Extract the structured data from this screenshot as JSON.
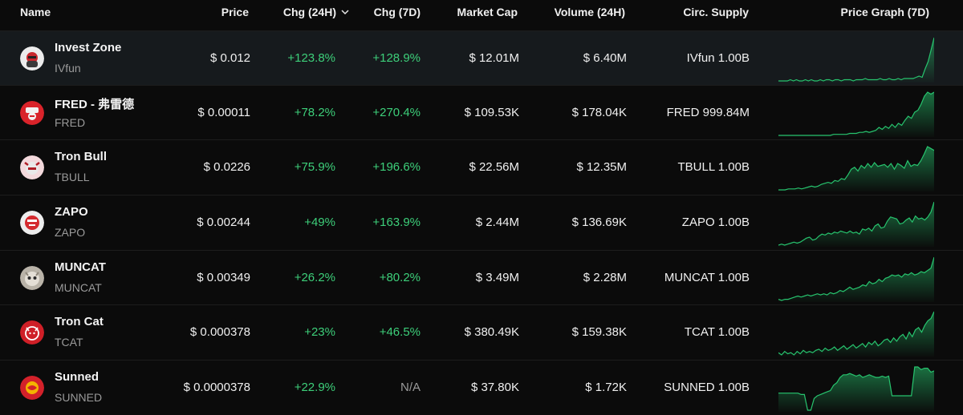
{
  "columns": {
    "name": "Name",
    "price": "Price",
    "chg24": "Chg (24H)",
    "chg7": "Chg (7D)",
    "mcap": "Market Cap",
    "vol": "Volume (24H)",
    "supply": "Circ. Supply",
    "graph": "Price Graph (7D)"
  },
  "sort": {
    "column": "chg24",
    "direction": "descending",
    "icon": "chevron-down-icon"
  },
  "colors": {
    "background": "#0b0b0b",
    "highlight_row": "#161a1d",
    "positive": "#3dcf7a",
    "spark_line": "#27c46e",
    "muted": "#9a9a9a"
  },
  "rows": [
    {
      "name": "Invest Zone",
      "symbol": "IVfun",
      "price": "$ 0.012",
      "chg24": "+123.8%",
      "chg7": "+128.9%",
      "mcap": "$ 12.01M",
      "vol": "$ 6.40M",
      "supply": "IVfun 1.00B",
      "icon": "invest-zone-logo-icon",
      "spark": [
        2,
        2,
        2,
        2,
        3,
        2,
        3,
        2,
        2,
        3,
        2,
        3,
        2,
        2,
        3,
        2,
        3,
        3,
        2,
        3,
        3,
        2,
        3,
        3,
        3,
        2,
        3,
        3,
        3,
        4,
        3,
        3,
        3,
        3,
        4,
        3,
        3,
        4,
        3,
        3,
        4,
        3,
        4,
        4,
        4,
        4,
        5,
        6,
        5,
        12,
        18,
        28,
        38
      ]
    },
    {
      "name": "FRED - 弗雷德",
      "symbol": "FRED",
      "price": "$ 0.00011",
      "chg24": "+78.2%",
      "chg7": "+270.4%",
      "mcap": "$ 109.53K",
      "vol": "$ 178.04K",
      "supply": "FRED 999.84M",
      "icon": "fred-logo-icon",
      "spark": [
        1,
        1,
        1,
        1,
        1,
        1,
        1,
        1,
        1,
        1,
        1,
        1,
        1,
        1,
        1,
        1,
        1,
        2,
        2,
        2,
        2,
        2,
        3,
        3,
        3,
        4,
        4,
        5,
        4,
        5,
        6,
        9,
        7,
        10,
        8,
        12,
        9,
        13,
        11,
        16,
        20,
        18,
        24,
        26,
        32,
        40,
        44,
        42,
        44
      ]
    },
    {
      "name": "Tron Bull",
      "symbol": "TBULL",
      "price": "$ 0.0226",
      "chg24": "+75.9%",
      "chg7": "+196.6%",
      "mcap": "$ 22.56M",
      "vol": "$ 12.35M",
      "supply": "TBULL 1.00B",
      "icon": "tron-bull-logo-icon",
      "spark": [
        2,
        2,
        2,
        3,
        3,
        3,
        4,
        3,
        4,
        5,
        6,
        5,
        6,
        8,
        9,
        10,
        9,
        12,
        11,
        14,
        13,
        18,
        24,
        26,
        22,
        28,
        25,
        30,
        26,
        31,
        27,
        28,
        29,
        26,
        30,
        24,
        30,
        28,
        25,
        33,
        27,
        29,
        28,
        33,
        40,
        48,
        46,
        44
      ]
    },
    {
      "name": "ZAPO",
      "symbol": "ZAPO",
      "price": "$ 0.00244",
      "chg24": "+49%",
      "chg7": "+163.9%",
      "mcap": "$ 2.44M",
      "vol": "$ 136.69K",
      "supply": "ZAPO 1.00B",
      "icon": "zapo-logo-icon",
      "spark": [
        1,
        2,
        1,
        2,
        3,
        4,
        3,
        4,
        6,
        8,
        9,
        6,
        7,
        10,
        12,
        11,
        13,
        12,
        14,
        13,
        15,
        14,
        13,
        15,
        13,
        14,
        12,
        17,
        16,
        18,
        15,
        20,
        22,
        18,
        19,
        25,
        29,
        28,
        27,
        22,
        23,
        26,
        28,
        24,
        30,
        27,
        28,
        26,
        29,
        34,
        44
      ]
    },
    {
      "name": "MUNCAT",
      "symbol": "MUNCAT",
      "price": "$ 0.00349",
      "chg24": "+26.2%",
      "chg7": "+80.2%",
      "mcap": "$ 3.49M",
      "vol": "$ 2.28M",
      "supply": "MUNCAT 1.00B",
      "icon": "muncat-logo-icon",
      "spark": [
        2,
        1,
        2,
        2,
        3,
        4,
        5,
        4,
        5,
        6,
        5,
        6,
        7,
        6,
        7,
        6,
        8,
        7,
        8,
        10,
        9,
        11,
        13,
        11,
        12,
        13,
        15,
        14,
        18,
        16,
        17,
        20,
        18,
        21,
        22,
        24,
        23,
        24,
        22,
        25,
        24,
        26,
        24,
        25,
        27,
        26,
        28,
        30,
        40
      ]
    },
    {
      "name": "Tron Cat",
      "symbol": "TCAT",
      "price": "$ 0.000378",
      "chg24": "+23%",
      "chg7": "+46.5%",
      "mcap": "$ 380.49K",
      "vol": "$ 159.38K",
      "supply": "TCAT 1.00B",
      "icon": "tron-cat-logo-icon",
      "spark": [
        4,
        2,
        5,
        3,
        4,
        2,
        5,
        3,
        6,
        4,
        5,
        4,
        6,
        7,
        5,
        8,
        6,
        7,
        9,
        6,
        8,
        10,
        7,
        9,
        11,
        8,
        10,
        12,
        9,
        13,
        11,
        14,
        10,
        12,
        15,
        16,
        13,
        17,
        14,
        18,
        20,
        16,
        22,
        18,
        24,
        26,
        22,
        28,
        32,
        34,
        40
      ]
    },
    {
      "name": "Sunned",
      "symbol": "SUNNED",
      "price": "$ 0.0000378",
      "chg24": "+22.9%",
      "chg7": "N/A",
      "mcap": "$ 37.80K",
      "vol": "$ 1.72K",
      "supply": "SUNNED 1.00B",
      "icon": "sunned-logo-icon",
      "spark": [
        14,
        14,
        14,
        14,
        14,
        14,
        14,
        13,
        13,
        1,
        1,
        10,
        12,
        13,
        14,
        15,
        16,
        20,
        22,
        26,
        28,
        28,
        29,
        28,
        27,
        28,
        26,
        27,
        28,
        27,
        26,
        26,
        27,
        26,
        27,
        12,
        12,
        12,
        12,
        12,
        12,
        12,
        34,
        34,
        32,
        33,
        33,
        30,
        31
      ]
    }
  ]
}
